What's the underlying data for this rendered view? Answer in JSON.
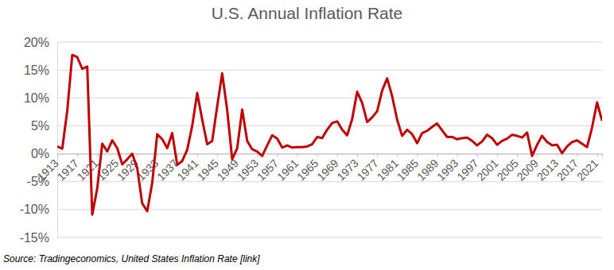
{
  "chart_data": {
    "type": "line",
    "title": "U.S. Annual Inflation Rate",
    "source": "Source: Tradingeconomics, United States Inflation Rate [link]",
    "color": "#c00000",
    "grid": true,
    "x": [
      1913,
      1914,
      1915,
      1916,
      1917,
      1918,
      1919,
      1920,
      1921,
      1922,
      1923,
      1924,
      1925,
      1926,
      1927,
      1928,
      1929,
      1930,
      1931,
      1932,
      1933,
      1934,
      1935,
      1936,
      1937,
      1938,
      1939,
      1940,
      1941,
      1942,
      1943,
      1944,
      1945,
      1946,
      1947,
      1948,
      1949,
      1950,
      1951,
      1952,
      1953,
      1954,
      1955,
      1956,
      1957,
      1958,
      1959,
      1960,
      1961,
      1962,
      1963,
      1964,
      1965,
      1966,
      1967,
      1968,
      1969,
      1970,
      1971,
      1972,
      1973,
      1974,
      1975,
      1976,
      1977,
      1978,
      1979,
      1980,
      1981,
      1982,
      1983,
      1984,
      1985,
      1986,
      1987,
      1988,
      1989,
      1990,
      1991,
      1992,
      1993,
      1994,
      1995,
      1996,
      1997,
      1998,
      1999,
      2000,
      2001,
      2002,
      2003,
      2004,
      2005,
      2006,
      2007,
      2008,
      2009,
      2010,
      2011,
      2012,
      2013,
      2014,
      2015,
      2016,
      2017,
      2018,
      2019,
      2020,
      2021,
      2022
    ],
    "values": [
      1.3,
      0.9,
      7.7,
      17.7,
      17.3,
      15.2,
      15.6,
      -10.9,
      -6.2,
      1.8,
      0.4,
      2.4,
      1.0,
      -1.9,
      -1.0,
      0.0,
      -2.6,
      -8.9,
      -10.3,
      -5.2,
      3.5,
      2.6,
      1.0,
      3.7,
      -2.0,
      -1.3,
      0.7,
      5.0,
      10.9,
      6.1,
      1.7,
      2.3,
      8.5,
      14.4,
      7.8,
      -1.0,
      1.0,
      7.9,
      2.3,
      0.8,
      0.4,
      -0.4,
      1.5,
      3.3,
      2.7,
      1.1,
      1.5,
      1.1,
      1.2,
      1.2,
      1.3,
      1.7,
      3.0,
      2.8,
      4.3,
      5.5,
      5.8,
      4.3,
      3.3,
      6.2,
      11.1,
      9.1,
      5.7,
      6.5,
      7.6,
      11.3,
      13.5,
      10.3,
      6.1,
      3.2,
      4.3,
      3.5,
      1.9,
      3.7,
      4.1,
      4.8,
      5.4,
      4.2,
      3.0,
      3.0,
      2.6,
      2.8,
      2.9,
      2.3,
      1.5,
      2.2,
      3.4,
      2.8,
      1.6,
      2.3,
      2.7,
      3.4,
      3.2,
      2.9,
      3.8,
      -0.4,
      1.6,
      3.2,
      2.1,
      1.5,
      1.6,
      0.1,
      1.3,
      2.1,
      2.4,
      1.8,
      1.2,
      4.7,
      9.2,
      5.9
    ],
    "xlim": [
      1913,
      2022
    ],
    "xticks": [
      1913,
      1917,
      1921,
      1925,
      1929,
      1933,
      1937,
      1941,
      1945,
      1949,
      1953,
      1957,
      1961,
      1965,
      1969,
      1973,
      1977,
      1981,
      1985,
      1989,
      1993,
      1997,
      2001,
      2005,
      2009,
      2013,
      2017,
      2021
    ],
    "ylim": [
      -15,
      20
    ],
    "yticks": [
      {
        "value": -15,
        "label": "-15%"
      },
      {
        "value": -10,
        "label": "-10%"
      },
      {
        "value": -5,
        "label": "-5%"
      },
      {
        "value": 0,
        "label": "0%"
      },
      {
        "value": 5,
        "label": "5%"
      },
      {
        "value": 10,
        "label": "10%"
      },
      {
        "value": 15,
        "label": "15%"
      },
      {
        "value": 20,
        "label": "20%"
      }
    ]
  }
}
